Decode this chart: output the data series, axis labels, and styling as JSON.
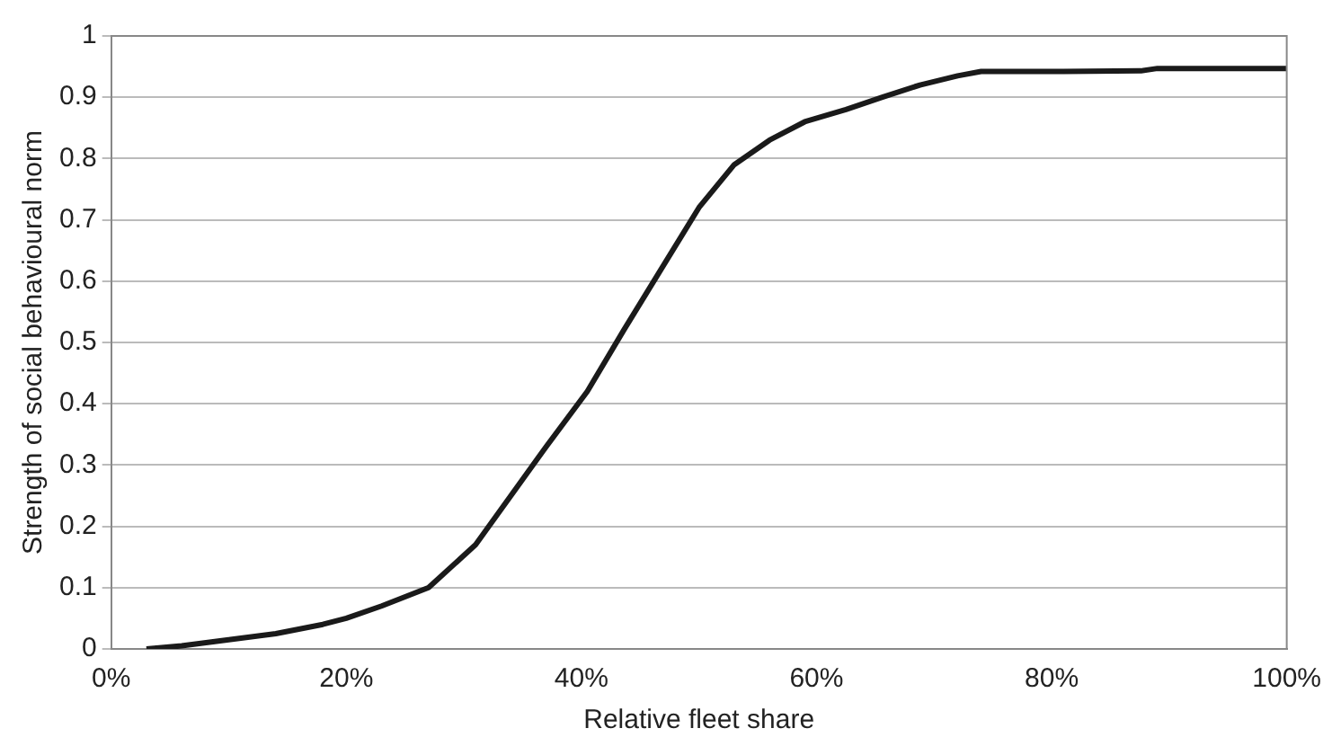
{
  "chart_data": {
    "type": "line",
    "xlabel": "Relative fleet share",
    "ylabel": "Strength of social behavioural norm",
    "series": [
      {
        "color": "#1a1a1a",
        "x": [
          3,
          6,
          10,
          14,
          18,
          20,
          23,
          27,
          31,
          34,
          37,
          40.5,
          43.6,
          46.8,
          50,
          53,
          56,
          59,
          62.5,
          65.6,
          68.8,
          72,
          74,
          81,
          87.6,
          89,
          100
        ],
        "values": [
          0,
          0.005,
          0.015,
          0.025,
          0.04,
          0.05,
          0.07,
          0.1,
          0.17,
          0.25,
          0.33,
          0.42,
          0.52,
          0.62,
          0.72,
          0.79,
          0.83,
          0.86,
          0.88,
          0.9,
          0.92,
          0.935,
          0.942,
          0.942,
          0.943,
          0.947,
          0.947
        ]
      }
    ],
    "xlim": [
      0,
      100
    ],
    "xticks": [
      {
        "value": 0,
        "label": "0%"
      },
      {
        "value": 20,
        "label": "20%"
      },
      {
        "value": 40,
        "label": "40%"
      },
      {
        "value": 60,
        "label": "60%"
      },
      {
        "value": 80,
        "label": "80%"
      },
      {
        "value": 100,
        "label": "100%"
      }
    ],
    "ylim": [
      0,
      1
    ],
    "yticks": [
      0,
      0.1,
      0.2,
      0.3,
      0.4,
      0.5,
      0.6,
      0.7,
      0.8,
      0.9,
      1
    ],
    "grid": "y",
    "legend": false,
    "marker": "none",
    "line_style": "solid"
  }
}
